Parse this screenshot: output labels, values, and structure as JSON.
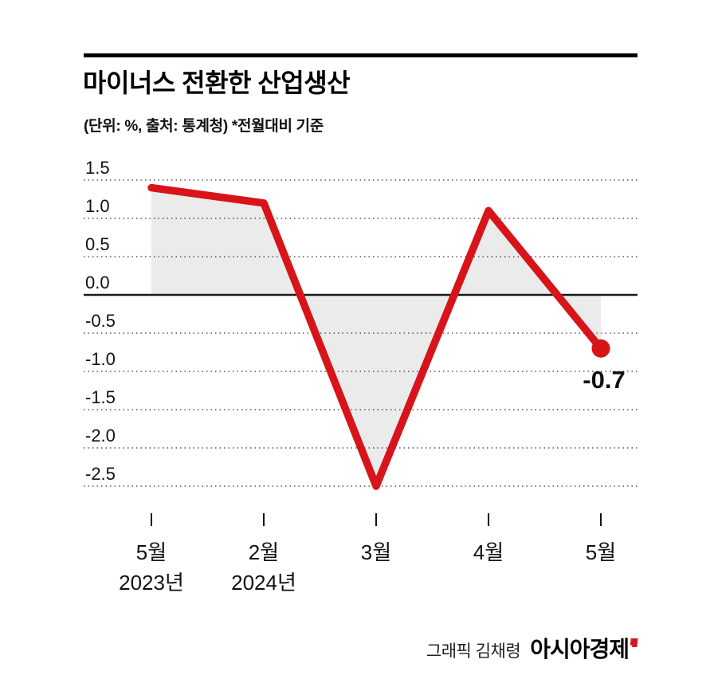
{
  "header": {
    "title": "마이너스 전환한 산업생산",
    "subtitle": "(단위: %, 출처: 통계청)  *전월대비 기준"
  },
  "chart_data": {
    "type": "line",
    "title": "마이너스 전환한 산업생산",
    "xlabel": "",
    "ylabel": "%",
    "categories": [
      {
        "month": "5월",
        "year": "2023년"
      },
      {
        "month": "2월",
        "year": "2024년"
      },
      {
        "month": "3월",
        "year": ""
      },
      {
        "month": "4월",
        "year": ""
      },
      {
        "month": "5월",
        "year": ""
      }
    ],
    "values": [
      1.4,
      1.2,
      -2.5,
      1.1,
      -0.7
    ],
    "ylim": [
      -2.5,
      1.5
    ],
    "yticks": [
      1.5,
      1.0,
      0.5,
      0.0,
      -0.5,
      -1.0,
      -1.5,
      -2.0,
      -2.5
    ],
    "ytick_labels": [
      "1.5",
      "1.0",
      "0.5",
      "0.0",
      "-0.5",
      "-1.0",
      "-1.5",
      "-2.0",
      "-2.5"
    ],
    "grid": "horizontal dotted",
    "legend": "none",
    "line_color": "#d7141a",
    "area_color": "#ebebeb",
    "axis_color": "#1a1a1a",
    "annotation": {
      "text": "-0.7",
      "point_index": 4
    }
  },
  "footer": {
    "credit": "그래픽 김채령",
    "brand": "아시아경제"
  }
}
